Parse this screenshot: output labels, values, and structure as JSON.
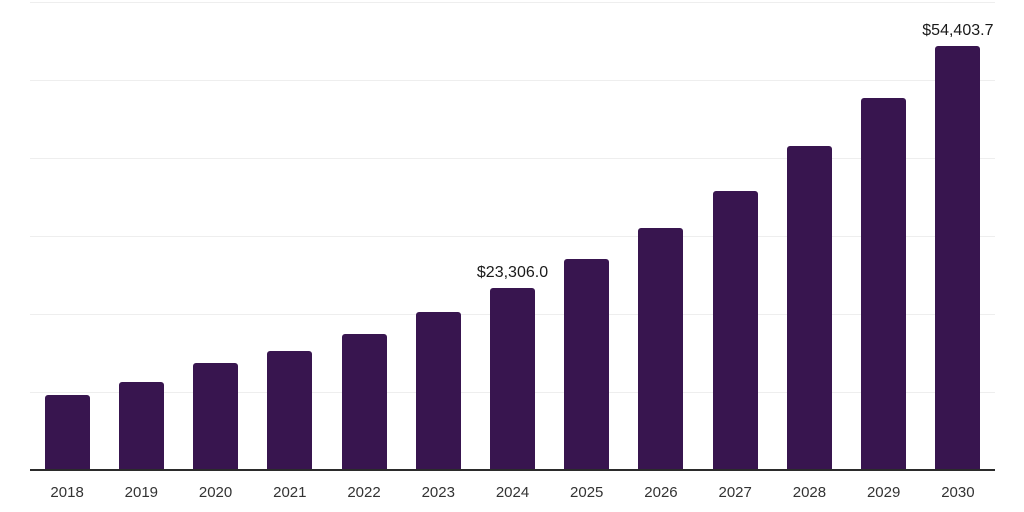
{
  "chart_data": {
    "type": "bar",
    "title": "",
    "xlabel": "",
    "ylabel": "",
    "categories": [
      "2018",
      "2019",
      "2020",
      "2021",
      "2022",
      "2023",
      "2024",
      "2025",
      "2026",
      "2027",
      "2028",
      "2029",
      "2030"
    ],
    "values": [
      9650,
      11300,
      13750,
      15300,
      17400,
      20300,
      23306.0,
      27000,
      31000,
      35750,
      41500,
      47650,
      54403.7
    ],
    "data_labels": [
      {
        "category": "2024",
        "text": "$23,306.0"
      },
      {
        "category": "2030",
        "text": "$54,403.7"
      }
    ],
    "ylim": [
      0,
      60000
    ],
    "gridline_step": 10000,
    "grid": true,
    "legend": "none",
    "colors": {
      "bar": "#38154F",
      "axis_line": "#2B2B2B",
      "gridline": "#EEEEEE",
      "tick_label": "#333333",
      "data_label": "#1A1A1A",
      "background": "#FFFFFF"
    }
  }
}
